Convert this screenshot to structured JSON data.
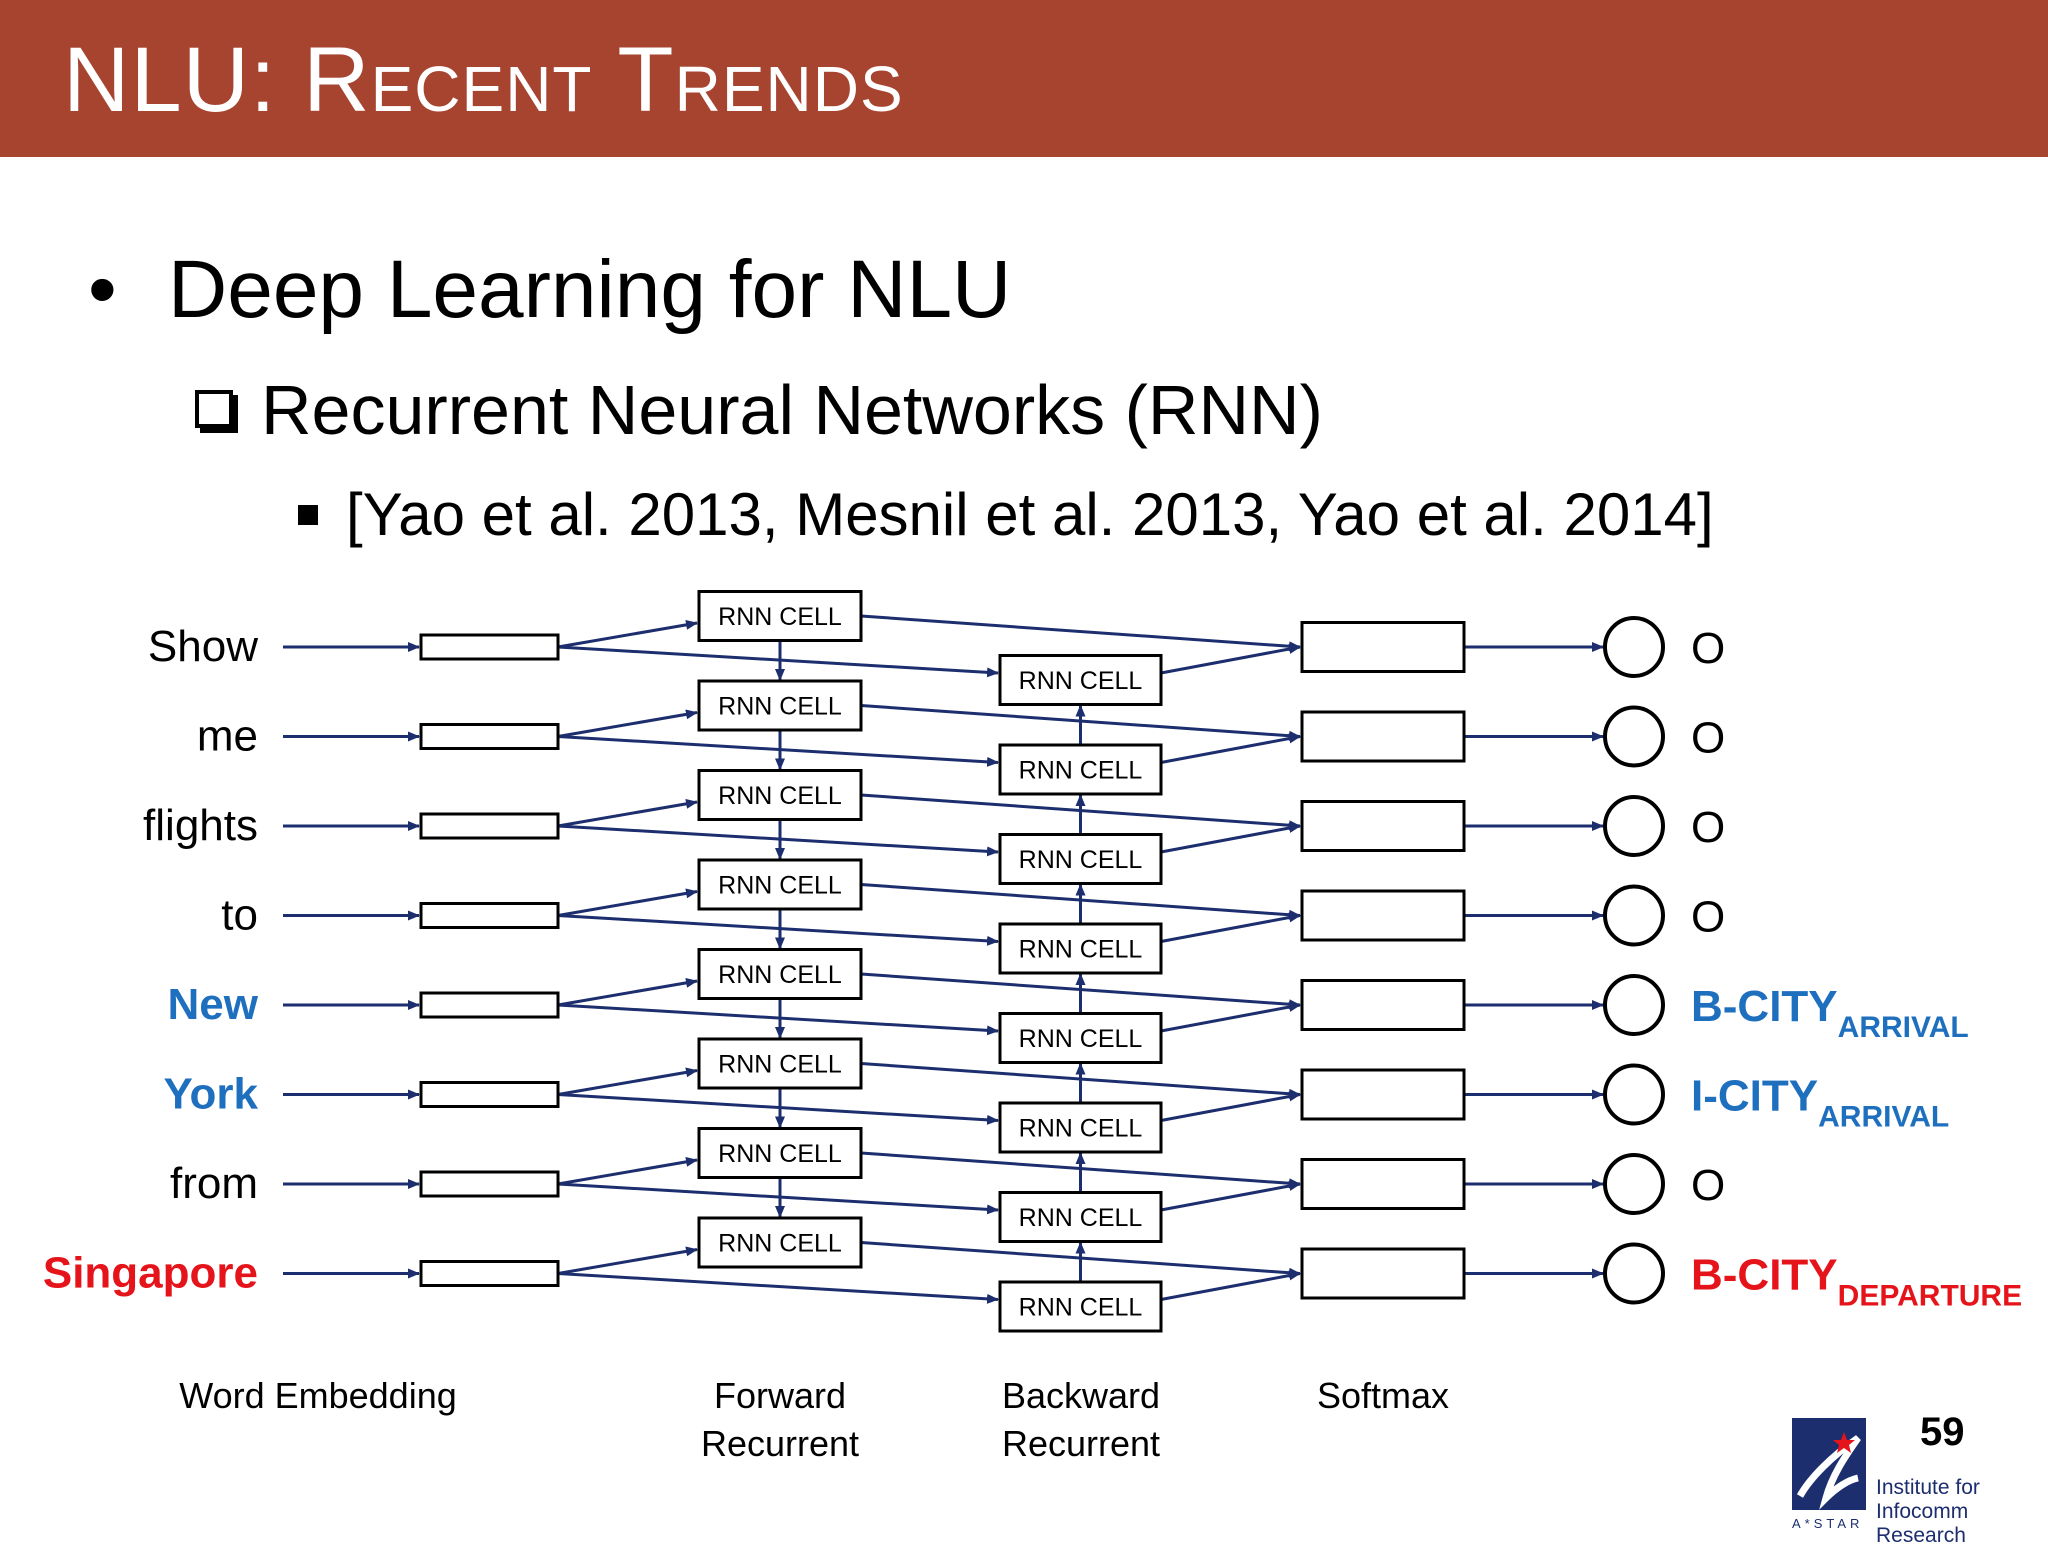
{
  "slide": {
    "title": "NLU: Recent Trends",
    "bullet1": "Deep Learning for NLU",
    "bullet2": "Recurrent Neural Networks (RNN)",
    "bullet3": "[Yao et al. 2013, Mesnil et al. 2013, Yao et al. 2014]",
    "page_number": "59"
  },
  "diagram": {
    "cell_label": "RNN CELL",
    "words": [
      {
        "text": "Show",
        "color": "#000000"
      },
      {
        "text": "me",
        "color": "#000000"
      },
      {
        "text": "flights",
        "color": "#000000"
      },
      {
        "text": "to",
        "color": "#000000"
      },
      {
        "text": "New",
        "color": "#1f6fbf"
      },
      {
        "text": "York",
        "color": "#1f6fbf"
      },
      {
        "text": "from",
        "color": "#000000"
      },
      {
        "text": "Singapore",
        "color": "#e5141b"
      }
    ],
    "tags": [
      {
        "main": "O",
        "sub": "",
        "color": "#000000"
      },
      {
        "main": "O",
        "sub": "",
        "color": "#000000"
      },
      {
        "main": "O",
        "sub": "",
        "color": "#000000"
      },
      {
        "main": "O",
        "sub": "",
        "color": "#000000"
      },
      {
        "main": "B-CITY",
        "sub": "ARRIVAL",
        "color": "#1f6fbf"
      },
      {
        "main": "I-CITY",
        "sub": "ARRIVAL",
        "color": "#1f6fbf"
      },
      {
        "main": "O",
        "sub": "",
        "color": "#000000"
      },
      {
        "main": "B-CITY",
        "sub": "DEPARTURE",
        "color": "#e5141b"
      }
    ],
    "column_labels": [
      [
        "Word Embedding"
      ],
      [
        "Forward",
        "Recurrent"
      ],
      [
        "Backward",
        "Recurrent"
      ],
      [
        "Softmax"
      ]
    ],
    "arrow_color": "#1c2e6e"
  },
  "logo": {
    "line1": "Institute for",
    "line2": "Infocomm Research",
    "sub": "A*STAR",
    "icon": "astar-logo-icon"
  }
}
